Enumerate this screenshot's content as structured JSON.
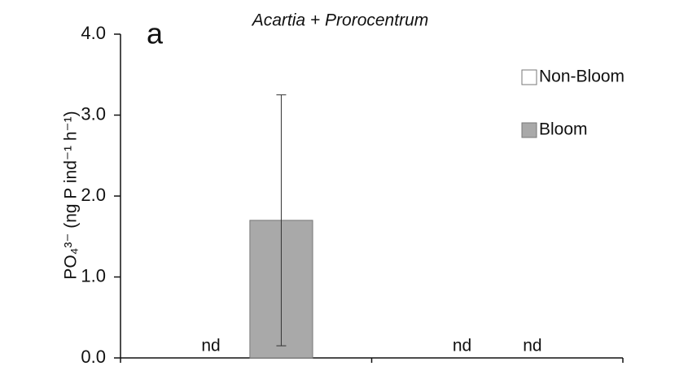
{
  "chart_data": {
    "type": "bar",
    "panel_label": "a",
    "title": "Acartia + Prorocentrum",
    "y_label": "PO₄³⁻ (ng P ind⁻¹ h⁻¹)",
    "categories": [
      null,
      null
    ],
    "series": [
      {
        "name": "Non-Bloom",
        "color": "#ffffff",
        "values": [
          null,
          null
        ],
        "value_labels": [
          "nd",
          "nd"
        ]
      },
      {
        "name": "Bloom",
        "color": "#a9a9a9",
        "values": [
          1.7,
          null
        ],
        "errors": [
          1.55,
          null
        ],
        "value_labels": [
          null,
          "nd"
        ]
      }
    ],
    "ylim": [
      0,
      4
    ],
    "yticks": [
      {
        "value": 0,
        "label": "0.0"
      },
      {
        "value": 1,
        "label": "1.0"
      },
      {
        "value": 2,
        "label": "2.0"
      },
      {
        "value": 3,
        "label": "3.0"
      },
      {
        "value": 4,
        "label": "4.0"
      }
    ],
    "legend": "top-right"
  }
}
